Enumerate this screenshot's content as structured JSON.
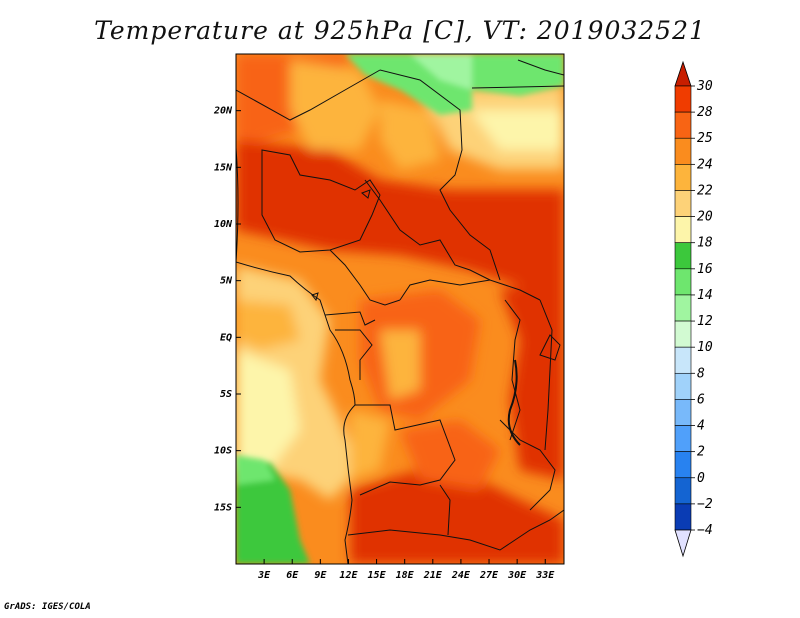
{
  "title": "Temperature at 925hPa [C], VT: 2019032521",
  "credit": "GrADS: IGES/COLA",
  "map": {
    "lon_range": [
      0,
      35
    ],
    "lat_range": [
      -20,
      25
    ],
    "lon_ticks": [
      {
        "value": 3,
        "label": "3E"
      },
      {
        "value": 6,
        "label": "6E"
      },
      {
        "value": 9,
        "label": "9E"
      },
      {
        "value": 12,
        "label": "12E"
      },
      {
        "value": 15,
        "label": "15E"
      },
      {
        "value": 18,
        "label": "18E"
      },
      {
        "value": 21,
        "label": "21E"
      },
      {
        "value": 24,
        "label": "24E"
      },
      {
        "value": 27,
        "label": "27E"
      },
      {
        "value": 30,
        "label": "30E"
      },
      {
        "value": 33,
        "label": "33E"
      }
    ],
    "lat_ticks": [
      {
        "value": 20,
        "label": "20N"
      },
      {
        "value": 15,
        "label": "15N"
      },
      {
        "value": 10,
        "label": "10N"
      },
      {
        "value": 5,
        "label": "5N"
      },
      {
        "value": 0,
        "label": "EQ"
      },
      {
        "value": -5,
        "label": "5S"
      },
      {
        "value": -10,
        "label": "10S"
      },
      {
        "value": -15,
        "label": "15S"
      }
    ]
  },
  "colorbar": {
    "levels": [
      "30",
      "28",
      "25",
      "24",
      "22",
      "20",
      "18",
      "16",
      "14",
      "12",
      "10",
      "8",
      "6",
      "4",
      "2",
      "0",
      "−2",
      "−4"
    ],
    "colors": [
      "#f03c00",
      "#f86414",
      "#fa8c1e",
      "#fdb43c",
      "#fdd278",
      "#fdf5aa",
      "#3cc83c",
      "#6ee66e",
      "#a0f5a0",
      "#d2fad2",
      "#c8e6fa",
      "#a0d2fa",
      "#78b9fa",
      "#50a0fa",
      "#2882f0",
      "#1464d2",
      "#0a3cb4",
      "#050f78"
    ],
    "top_color": "#c81e00",
    "bottom_color": "#e1e1ff"
  }
}
